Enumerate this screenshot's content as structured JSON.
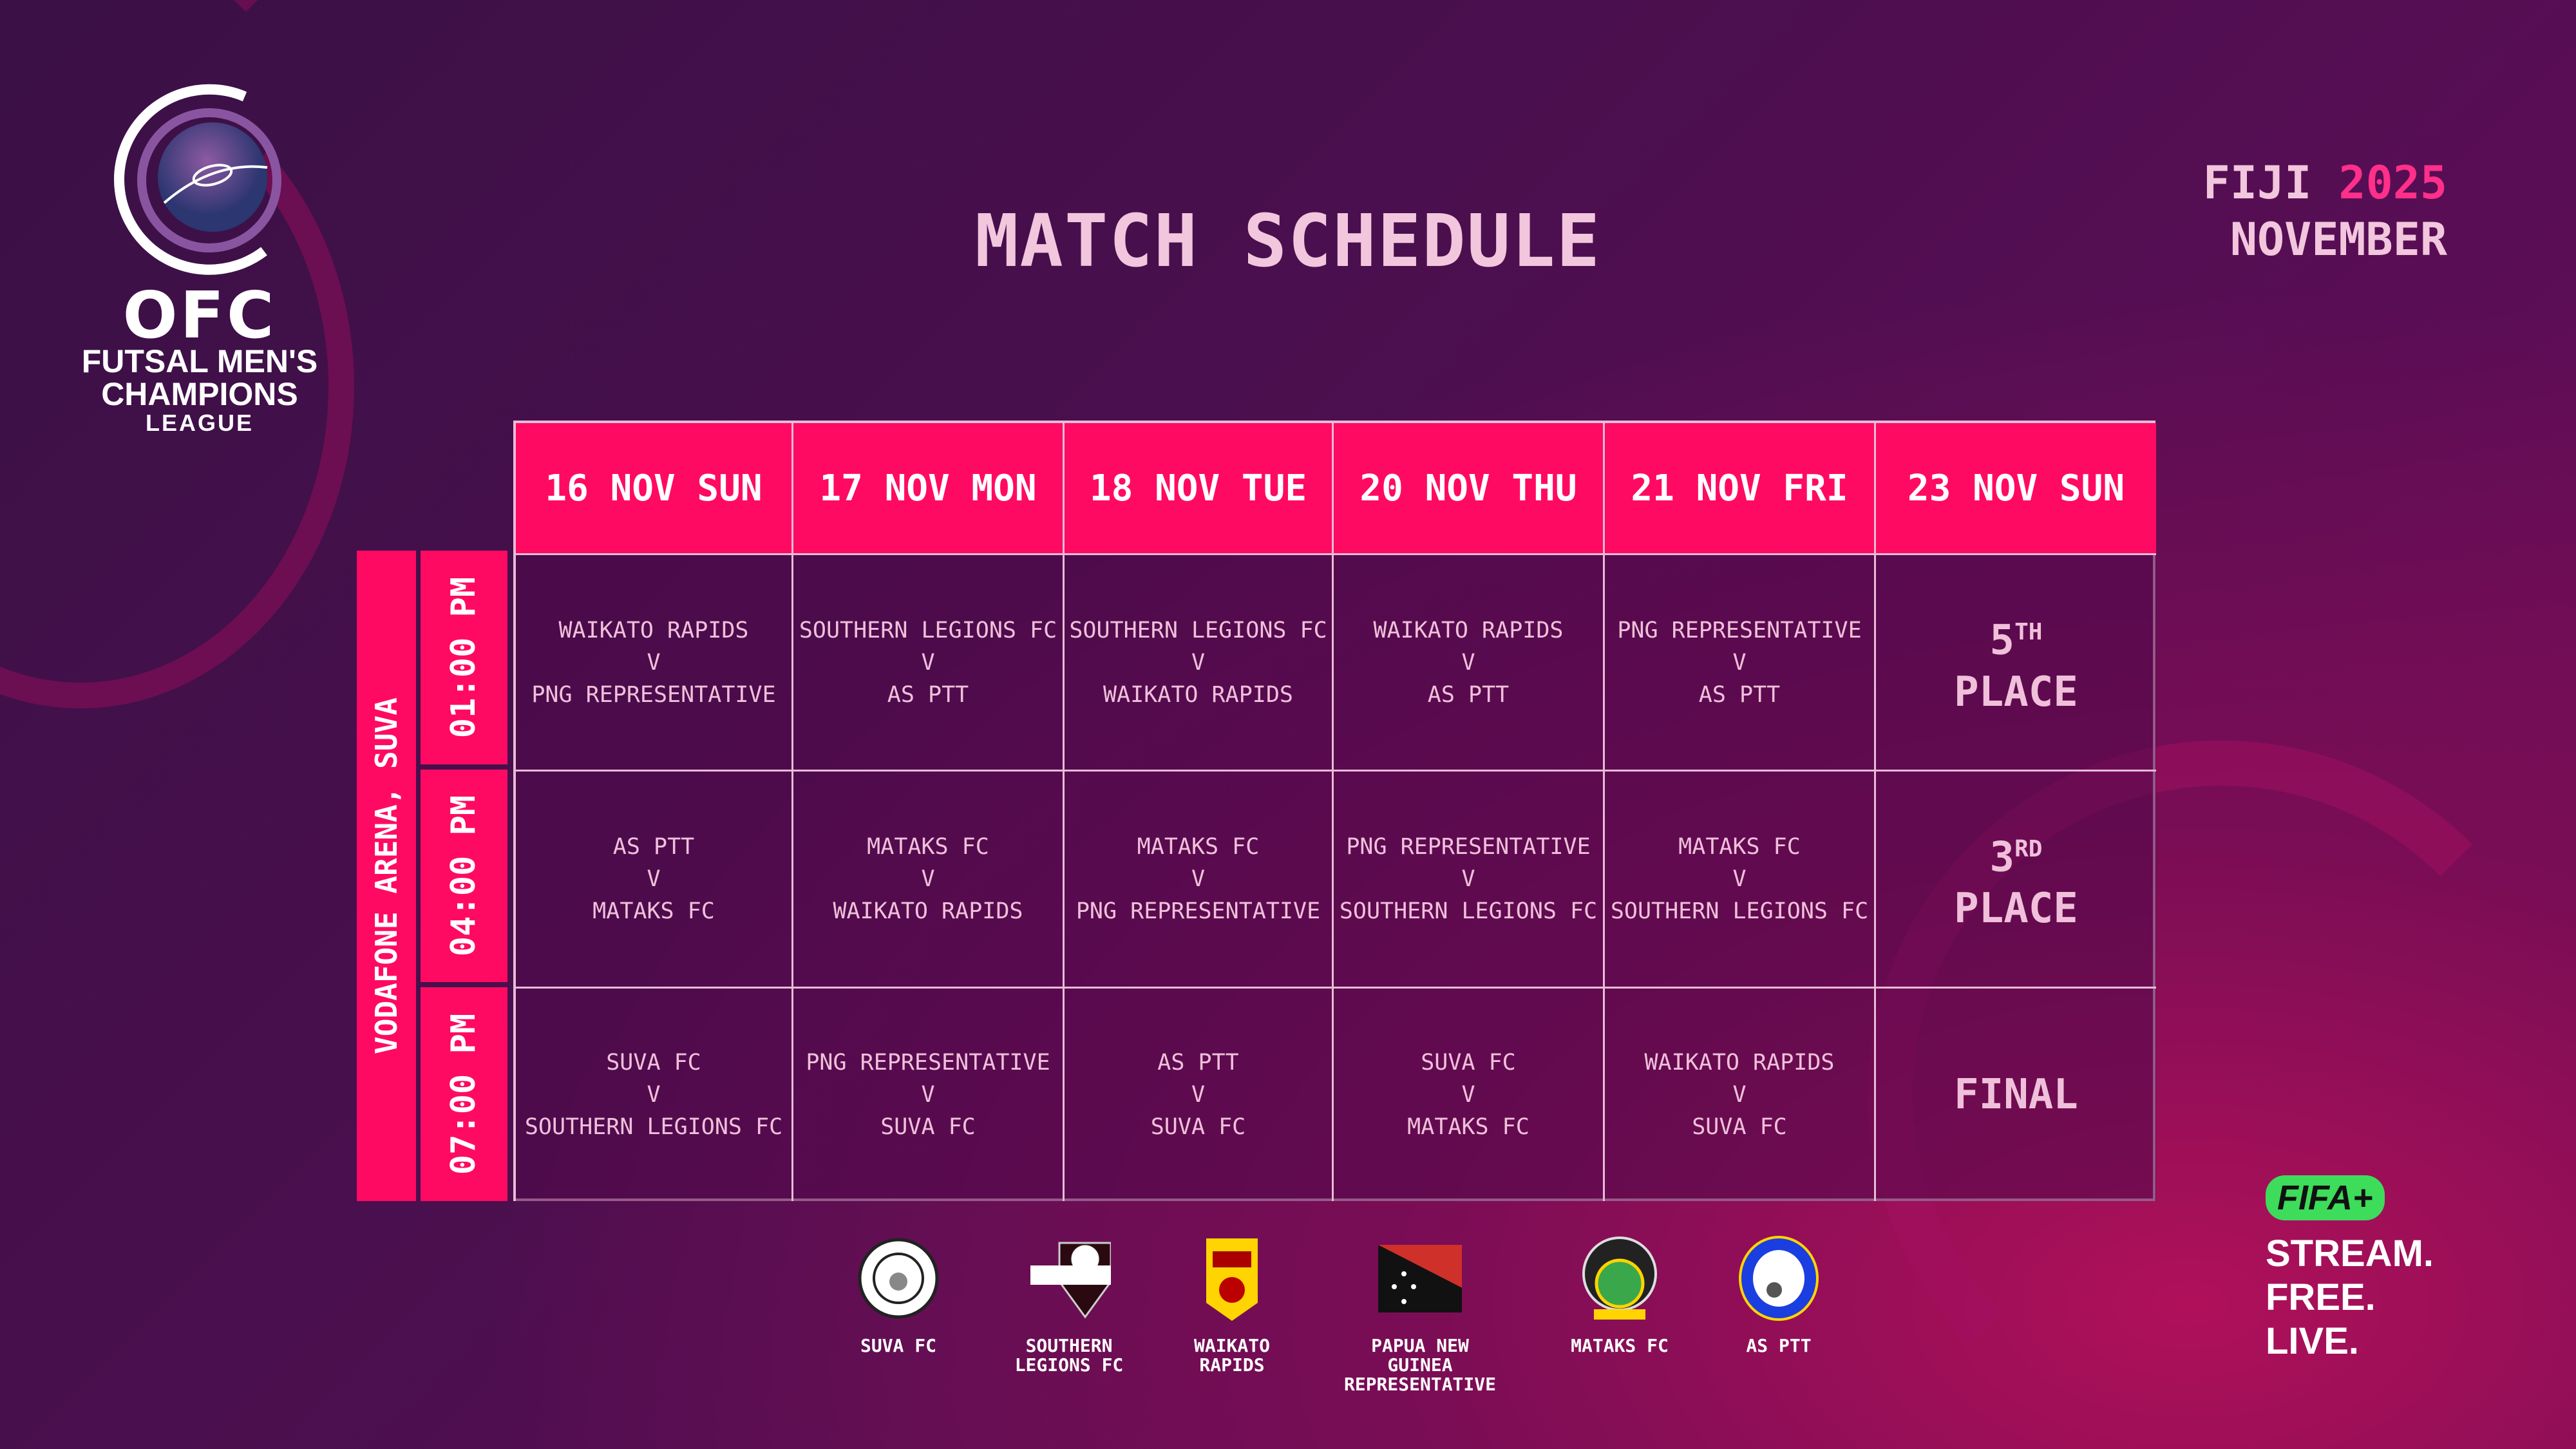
{
  "logo": {
    "ofc": "OFC",
    "line1": "FUTSAL MEN'S",
    "line2": "CHAMPIONS",
    "line3": "LEAGUE"
  },
  "title": "MATCH SCHEDULE",
  "event": {
    "place": "FIJI",
    "year": "2025",
    "month": "NOVEMBER"
  },
  "venue": "VODAFONE ARENA, SUVA",
  "times": [
    "01:00 PM",
    "04:00 PM",
    "07:00 PM"
  ],
  "days": [
    "16 NOV SUN",
    "17 NOV MON",
    "18 NOV TUE",
    "20 NOV THU",
    "21 NOV FRI",
    "23 NOV SUN"
  ],
  "vs": "V",
  "matches": [
    [
      {
        "home": "WAIKATO RAPIDS",
        "away": "PNG REPRESENTATIVE"
      },
      {
        "home": "SOUTHERN LEGIONS FC",
        "away": "AS PTT"
      },
      {
        "home": "SOUTHERN LEGIONS FC",
        "away": "WAIKATO RAPIDS"
      },
      {
        "home": "WAIKATO RAPIDS",
        "away": "AS PTT"
      },
      {
        "home": "PNG REPRESENTATIVE",
        "away": "AS PTT"
      }
    ],
    [
      {
        "home": "AS PTT",
        "away": "MATAKS FC"
      },
      {
        "home": "MATAKS FC",
        "away": "WAIKATO RAPIDS"
      },
      {
        "home": "MATAKS FC",
        "away": "PNG REPRESENTATIVE"
      },
      {
        "home": "PNG REPRESENTATIVE",
        "away": "SOUTHERN LEGIONS FC"
      },
      {
        "home": "MATAKS FC",
        "away": "SOUTHERN LEGIONS FC"
      }
    ],
    [
      {
        "home": "SUVA FC",
        "away": "SOUTHERN LEGIONS FC"
      },
      {
        "home": "PNG REPRESENTATIVE",
        "away": "SUVA FC"
      },
      {
        "home": "AS PTT",
        "away": "SUVA FC"
      },
      {
        "home": "SUVA FC",
        "away": "MATAKS FC"
      },
      {
        "home": "WAIKATO RAPIDS",
        "away": "SUVA FC"
      }
    ]
  ],
  "finals": [
    {
      "num": "5",
      "sup": "TH",
      "label": "PLACE"
    },
    {
      "num": "3",
      "sup": "RD",
      "label": "PLACE"
    },
    {
      "num": "",
      "sup": "",
      "label": "FINAL"
    }
  ],
  "teams": [
    {
      "line1": "SUVA FC",
      "line2": "",
      "crest": "suva-fc-crest"
    },
    {
      "line1": "SOUTHERN",
      "line2": "LEGIONS FC",
      "crest": "southern-legions-crest"
    },
    {
      "line1": "WAIKATO",
      "line2": "RAPIDS",
      "crest": "waikato-rapids-crest"
    },
    {
      "line1": "PAPUA NEW GUINEA",
      "line2": "REPRESENTATIVE",
      "crest": "png-flag"
    },
    {
      "line1": "MATAKS FC",
      "line2": "",
      "crest": "mataks-fc-crest"
    },
    {
      "line1": "AS PTT",
      "line2": "",
      "crest": "as-ptt-crest"
    }
  ],
  "fifa": {
    "logo": "FIFA+",
    "line1": "STREAM.",
    "line2": "FREE.",
    "line3": "LIVE."
  },
  "colors": {
    "accent": "#ff0a62",
    "text": "#f2c6dd",
    "bg": "#4a0f4e",
    "fifa_green": "#3ddc5a"
  }
}
